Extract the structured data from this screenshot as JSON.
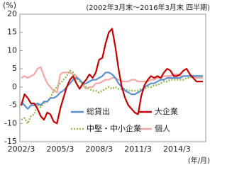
{
  "chart_data": {
    "type": "line",
    "y_label": "(%)",
    "subtitle": "(2002年3月末～2016年3月末 四半期)",
    "x_label": "(年/月)",
    "categories": [
      "2002/3",
      null,
      null,
      null,
      null,
      null,
      null,
      null,
      null,
      null,
      null,
      null,
      "2005/3",
      null,
      null,
      null,
      null,
      null,
      null,
      null,
      null,
      null,
      null,
      null,
      "2008/3",
      null,
      null,
      null,
      null,
      null,
      null,
      null,
      null,
      null,
      null,
      null,
      "2011/3",
      null,
      null,
      null,
      null,
      null,
      null,
      null,
      null,
      null,
      null,
      null,
      "2014/3",
      null,
      null,
      null,
      null,
      null,
      null,
      null,
      null
    ],
    "ylim": [
      -15,
      20
    ],
    "yticks": [
      -15,
      -10,
      -5,
      0,
      5,
      10,
      15,
      20
    ],
    "series": [
      {
        "name": "個人",
        "color": "#f4a7a7",
        "style": "solid",
        "values": [
          2.5,
          3,
          2.5,
          3,
          3.5,
          5,
          5.5,
          3,
          1,
          0,
          -1,
          -1.5,
          3.5,
          4,
          4,
          4,
          3.5,
          3,
          2,
          0.5,
          -0.5,
          0,
          0,
          1,
          1,
          1.5,
          2,
          2,
          2.5,
          2.5,
          2,
          1.5,
          1.5,
          1.5,
          2,
          2,
          1.5,
          1.5,
          1.5,
          1.5,
          2,
          2,
          2.5,
          2.5,
          3,
          3,
          3,
          3.5,
          3.5,
          3,
          3,
          3,
          3,
          3,
          2.5,
          2.5,
          2.5
        ]
      },
      {
        "name": "中堅・中小企業",
        "color": "#9bbb59",
        "style": "dotted",
        "values": [
          -9,
          -8.5,
          -10,
          -8,
          -7.5,
          -5,
          -5.5,
          -4.5,
          -4,
          -3,
          -1,
          0,
          1,
          2,
          3,
          4.5,
          4,
          2.5,
          1.5,
          1,
          0,
          -0.5,
          -1,
          -1,
          -1.5,
          -1,
          -0.5,
          0,
          -0.5,
          0,
          -0.5,
          -0.5,
          -0.5,
          -1,
          -1,
          -1,
          -1,
          -0.5,
          -0.5,
          0,
          0,
          0.5,
          0.5,
          1,
          1.5,
          1.5,
          2,
          2,
          2,
          2,
          2,
          2.5,
          2.5,
          3,
          3,
          3,
          3
        ]
      },
      {
        "name": "総貸出",
        "color": "#5b8fd0",
        "style": "solid",
        "values": [
          -4,
          -5,
          -6,
          -5,
          -5,
          -4.5,
          -5,
          -4,
          -4,
          -3,
          -3,
          -2.5,
          -1.5,
          -1,
          0,
          1,
          2,
          2.5,
          2,
          1,
          1,
          1.5,
          2,
          2,
          2.5,
          3,
          4,
          4,
          3.5,
          2.5,
          1,
          0,
          -1,
          -1.5,
          -2,
          -2,
          -1.5,
          -1,
          0,
          0.5,
          1,
          1,
          1.5,
          2,
          2,
          2.5,
          2.5,
          2.5,
          2.5,
          2.5,
          3,
          3,
          3,
          3,
          3,
          3,
          3
        ]
      },
      {
        "name": "大企業",
        "color": "#c00000",
        "style": "solid",
        "values": [
          -5,
          -2,
          -3,
          -4.5,
          -4.5,
          -6,
          -8,
          -9,
          -7,
          -7.5,
          -9.5,
          -10,
          -6,
          -3,
          0,
          2,
          3,
          1,
          -0.5,
          1,
          2,
          3.5,
          2.5,
          4,
          7.5,
          8,
          12,
          15,
          16,
          11,
          5,
          0,
          -3,
          -5,
          -6,
          -7,
          -7.5,
          -2.5,
          0.5,
          2,
          3,
          2.5,
          3,
          2.5,
          4,
          5,
          4.5,
          3,
          3,
          3.5,
          4.5,
          5,
          3.5,
          2.5,
          1.5,
          1.5,
          1.5
        ]
      }
    ]
  }
}
